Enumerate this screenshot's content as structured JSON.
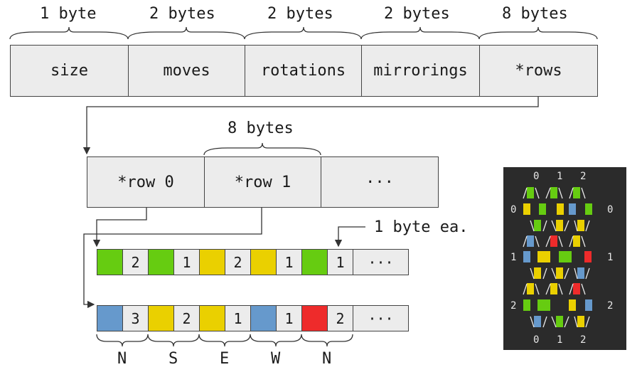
{
  "struct_fields": {
    "sizes": [
      "1 byte",
      "2 bytes",
      "2 bytes",
      "2 bytes",
      "8 bytes"
    ],
    "names": [
      "size",
      "moves",
      "rotations",
      "mirrorings",
      "*rows"
    ]
  },
  "rows_array": {
    "size_label": "8 bytes",
    "cells": [
      "*row 0",
      "*row 1",
      "···"
    ]
  },
  "row_entry_note": "1 byte ea.",
  "row0": [
    "",
    "2",
    "",
    "1",
    "",
    "2",
    "",
    "1",
    "",
    "1",
    "···"
  ],
  "row1": [
    "",
    "3",
    "",
    "2",
    "",
    "1",
    "",
    "1",
    "",
    "2",
    "···"
  ],
  "direction_labels": [
    "N",
    "S",
    "E",
    "W",
    "N"
  ],
  "colors": {
    "green": "#66cc11",
    "yellow": "#ead000",
    "blue": "#6699cc",
    "red": "#ee2b2b",
    "cell_bg": "#ececec",
    "terminal_bg": "#2b2b2b"
  },
  "terminal": {
    "col_labels": [
      "0",
      "1",
      "2"
    ],
    "row_labels": [
      "0",
      "1",
      "2"
    ]
  }
}
